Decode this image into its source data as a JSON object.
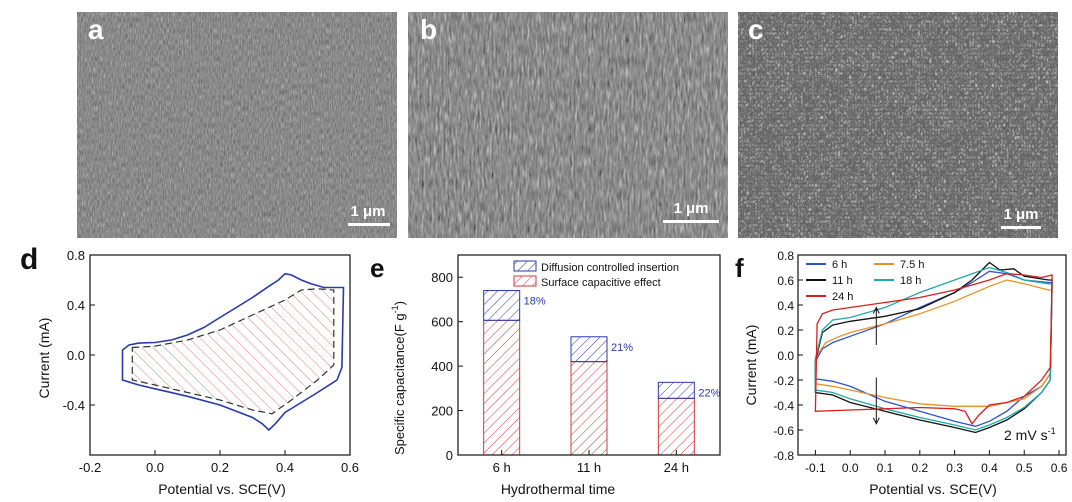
{
  "panels": {
    "a": {
      "label": "a",
      "scale_bar": "1 μm"
    },
    "b": {
      "label": "b",
      "scale_bar": "1 μm"
    },
    "c": {
      "label": "c",
      "scale_bar": "1 μm"
    },
    "d": {
      "label": "d"
    },
    "e": {
      "label": "e"
    },
    "f": {
      "label": "f"
    }
  },
  "colors": {
    "cv_blue": "#2a3aa8",
    "bar_red": "#d23a3a",
    "bar_blue": "#2a3aa8",
    "c6h": "#3052c8",
    "c7_5h": "#e8902a",
    "c11h": "#111111",
    "c18h": "#20a8a8",
    "c24h": "#d42020"
  },
  "chart_data": [
    {
      "panel": "d",
      "type": "line",
      "xlabel": "Potential vs. SCE(V)",
      "ylabel": "Current (mA)",
      "xlim": [
        -0.2,
        0.6
      ],
      "ylim": [
        -0.8,
        0.8
      ],
      "xticks": [
        "-0.2",
        "0.0",
        "0.2",
        "0.4",
        "0.6"
      ],
      "yticks": [
        "-0.4",
        "0.0",
        "0.4",
        "0.8"
      ],
      "series": [
        {
          "style": "solid",
          "upper": [
            [
              -0.1,
              0.04
            ],
            [
              -0.08,
              0.08
            ],
            [
              -0.05,
              0.095
            ],
            [
              0.0,
              0.1
            ],
            [
              0.05,
              0.12
            ],
            [
              0.1,
              0.16
            ],
            [
              0.15,
              0.22
            ],
            [
              0.2,
              0.3
            ],
            [
              0.25,
              0.38
            ],
            [
              0.3,
              0.46
            ],
            [
              0.35,
              0.55
            ],
            [
              0.38,
              0.6
            ],
            [
              0.4,
              0.65
            ],
            [
              0.42,
              0.64
            ],
            [
              0.45,
              0.6
            ],
            [
              0.48,
              0.57
            ],
            [
              0.52,
              0.54
            ],
            [
              0.57,
              0.54
            ],
            [
              0.58,
              0.54
            ]
          ],
          "lower": [
            [
              0.58,
              0.54
            ],
            [
              0.575,
              -0.1
            ],
            [
              0.56,
              -0.2
            ],
            [
              0.5,
              -0.3
            ],
            [
              0.45,
              -0.38
            ],
            [
              0.4,
              -0.46
            ],
            [
              0.37,
              -0.55
            ],
            [
              0.35,
              -0.6
            ],
            [
              0.33,
              -0.55
            ],
            [
              0.3,
              -0.5
            ],
            [
              0.25,
              -0.45
            ],
            [
              0.2,
              -0.4
            ],
            [
              0.1,
              -0.33
            ],
            [
              0.0,
              -0.27
            ],
            [
              -0.05,
              -0.24
            ],
            [
              -0.1,
              -0.2
            ]
          ]
        },
        {
          "style": "dashed",
          "upper": [
            [
              -0.07,
              0.06
            ],
            [
              0.0,
              0.07
            ],
            [
              0.1,
              0.12
            ],
            [
              0.2,
              0.2
            ],
            [
              0.3,
              0.32
            ],
            [
              0.4,
              0.44
            ],
            [
              0.45,
              0.52
            ],
            [
              0.5,
              0.53
            ],
            [
              0.55,
              0.52
            ]
          ],
          "lower": [
            [
              0.55,
              0.52
            ],
            [
              0.55,
              -0.08
            ],
            [
              0.5,
              -0.2
            ],
            [
              0.42,
              -0.36
            ],
            [
              0.36,
              -0.47
            ],
            [
              0.3,
              -0.44
            ],
            [
              0.2,
              -0.36
            ],
            [
              0.1,
              -0.3
            ],
            [
              0.0,
              -0.24
            ],
            [
              -0.07,
              -0.2
            ]
          ]
        }
      ]
    },
    {
      "panel": "e",
      "type": "bar",
      "stacked": true,
      "xlabel": "Hydrothermal time",
      "ylabel": "Specific capacitance(F g",
      "ylabel_sup": "-1",
      "ylabel_end": ")",
      "ylim": [
        0,
        900
      ],
      "yticks": [
        "0",
        "200",
        "400",
        "600",
        "800"
      ],
      "categories": [
        "6 h",
        "11 h",
        "24 h"
      ],
      "series": [
        {
          "name": "Surface capacitive effect",
          "values": [
            606,
            420,
            255
          ]
        },
        {
          "name": "Diffusion controlled insertion",
          "values": [
            134,
            112,
            72
          ]
        }
      ],
      "percent_labels": [
        "18%",
        "21%",
        "22%"
      ],
      "legend": "top-right"
    },
    {
      "panel": "f",
      "type": "line",
      "xlabel": "Potential vs. SCE(V)",
      "ylabel": "Current (mA)",
      "xlim": [
        -0.15,
        0.62
      ],
      "ylim": [
        -0.8,
        0.8
      ],
      "xticks": [
        "-0.1",
        "0.0",
        "0.1",
        "0.2",
        "0.3",
        "0.4",
        "0.5",
        "0.6"
      ],
      "yticks": [
        "-0.8",
        "-0.6",
        "-0.4",
        "-0.2",
        "0.0",
        "0.2",
        "0.4",
        "0.6",
        "0.8"
      ],
      "annotation": "2 mV s",
      "annotation_sup": "-1",
      "legend": "top-left",
      "series": [
        {
          "name": "6 h",
          "color_key": "c6h",
          "upper": [
            [
              -0.1,
              -0.05
            ],
            [
              -0.08,
              0.05
            ],
            [
              -0.05,
              0.1
            ],
            [
              0.0,
              0.15
            ],
            [
              0.1,
              0.25
            ],
            [
              0.2,
              0.38
            ],
            [
              0.3,
              0.5
            ],
            [
              0.35,
              0.58
            ],
            [
              0.4,
              0.67
            ],
            [
              0.45,
              0.65
            ],
            [
              0.5,
              0.6
            ],
            [
              0.57,
              0.58
            ],
            [
              0.58,
              0.58
            ]
          ],
          "lower": [
            [
              0.58,
              0.58
            ],
            [
              0.575,
              -0.15
            ],
            [
              0.55,
              -0.25
            ],
            [
              0.5,
              -0.33
            ],
            [
              0.45,
              -0.45
            ],
            [
              0.4,
              -0.53
            ],
            [
              0.36,
              -0.57
            ],
            [
              0.3,
              -0.53
            ],
            [
              0.2,
              -0.45
            ],
            [
              0.1,
              -0.37
            ],
            [
              0.0,
              -0.25
            ],
            [
              -0.05,
              -0.21
            ],
            [
              -0.1,
              -0.19
            ]
          ]
        },
        {
          "name": "7.5 h",
          "color_key": "c7_5h",
          "upper": [
            [
              -0.1,
              -0.02
            ],
            [
              -0.07,
              0.1
            ],
            [
              -0.03,
              0.15
            ],
            [
              0.0,
              0.18
            ],
            [
              0.1,
              0.25
            ],
            [
              0.2,
              0.33
            ],
            [
              0.3,
              0.43
            ],
            [
              0.4,
              0.55
            ],
            [
              0.45,
              0.6
            ],
            [
              0.5,
              0.57
            ],
            [
              0.57,
              0.52
            ],
            [
              0.58,
              0.52
            ]
          ],
          "lower": [
            [
              0.58,
              0.52
            ],
            [
              0.575,
              -0.15
            ],
            [
              0.55,
              -0.25
            ],
            [
              0.5,
              -0.35
            ],
            [
              0.4,
              -0.41
            ],
            [
              0.3,
              -0.41
            ],
            [
              0.2,
              -0.39
            ],
            [
              0.1,
              -0.34
            ],
            [
              0.0,
              -0.28
            ],
            [
              -0.05,
              -0.25
            ],
            [
              -0.1,
              -0.23
            ]
          ]
        },
        {
          "name": "11 h",
          "color_key": "c11h",
          "upper": [
            [
              -0.1,
              -0.05
            ],
            [
              -0.08,
              0.18
            ],
            [
              -0.05,
              0.24
            ],
            [
              0.0,
              0.27
            ],
            [
              0.1,
              0.31
            ],
            [
              0.2,
              0.37
            ],
            [
              0.3,
              0.5
            ],
            [
              0.35,
              0.6
            ],
            [
              0.4,
              0.74
            ],
            [
              0.43,
              0.68
            ],
            [
              0.47,
              0.69
            ],
            [
              0.5,
              0.63
            ],
            [
              0.57,
              0.6
            ],
            [
              0.58,
              0.6
            ]
          ],
          "lower": [
            [
              0.58,
              0.6
            ],
            [
              0.575,
              -0.2
            ],
            [
              0.55,
              -0.3
            ],
            [
              0.5,
              -0.43
            ],
            [
              0.45,
              -0.52
            ],
            [
              0.4,
              -0.58
            ],
            [
              0.36,
              -0.62
            ],
            [
              0.3,
              -0.58
            ],
            [
              0.2,
              -0.52
            ],
            [
              0.1,
              -0.45
            ],
            [
              0.0,
              -0.38
            ],
            [
              -0.05,
              -0.32
            ],
            [
              -0.1,
              -0.3
            ]
          ]
        },
        {
          "name": "18 h",
          "color_key": "c18h",
          "upper": [
            [
              -0.1,
              -0.03
            ],
            [
              -0.08,
              0.2
            ],
            [
              -0.05,
              0.28
            ],
            [
              0.0,
              0.3
            ],
            [
              0.1,
              0.38
            ],
            [
              0.2,
              0.5
            ],
            [
              0.3,
              0.6
            ],
            [
              0.4,
              0.7
            ],
            [
              0.45,
              0.66
            ],
            [
              0.5,
              0.6
            ],
            [
              0.57,
              0.57
            ],
            [
              0.58,
              0.57
            ]
          ],
          "lower": [
            [
              0.58,
              0.57
            ],
            [
              0.575,
              -0.2
            ],
            [
              0.55,
              -0.3
            ],
            [
              0.5,
              -0.42
            ],
            [
              0.45,
              -0.5
            ],
            [
              0.4,
              -0.56
            ],
            [
              0.36,
              -0.6
            ],
            [
              0.3,
              -0.56
            ],
            [
              0.2,
              -0.5
            ],
            [
              0.1,
              -0.43
            ],
            [
              0.0,
              -0.35
            ],
            [
              -0.05,
              -0.3
            ],
            [
              -0.1,
              -0.28
            ]
          ]
        },
        {
          "name": "24 h",
          "color_key": "c24h",
          "upper": [
            [
              -0.1,
              -0.45
            ],
            [
              -0.095,
              0.25
            ],
            [
              -0.08,
              0.33
            ],
            [
              -0.05,
              0.36
            ],
            [
              0.0,
              0.38
            ],
            [
              0.1,
              0.42
            ],
            [
              0.2,
              0.46
            ],
            [
              0.3,
              0.52
            ],
            [
              0.4,
              0.6
            ],
            [
              0.45,
              0.65
            ],
            [
              0.5,
              0.64
            ],
            [
              0.55,
              0.62
            ],
            [
              0.58,
              0.64
            ]
          ],
          "lower": [
            [
              0.58,
              0.64
            ],
            [
              0.575,
              -0.1
            ],
            [
              0.55,
              -0.2
            ],
            [
              0.5,
              -0.33
            ],
            [
              0.45,
              -0.38
            ],
            [
              0.4,
              -0.4
            ],
            [
              0.37,
              -0.48
            ],
            [
              0.35,
              -0.55
            ],
            [
              0.33,
              -0.45
            ],
            [
              0.3,
              -0.43
            ],
            [
              0.2,
              -0.42
            ],
            [
              0.1,
              -0.43
            ],
            [
              0.0,
              -0.44
            ],
            [
              -0.1,
              -0.45
            ]
          ]
        }
      ]
    }
  ]
}
